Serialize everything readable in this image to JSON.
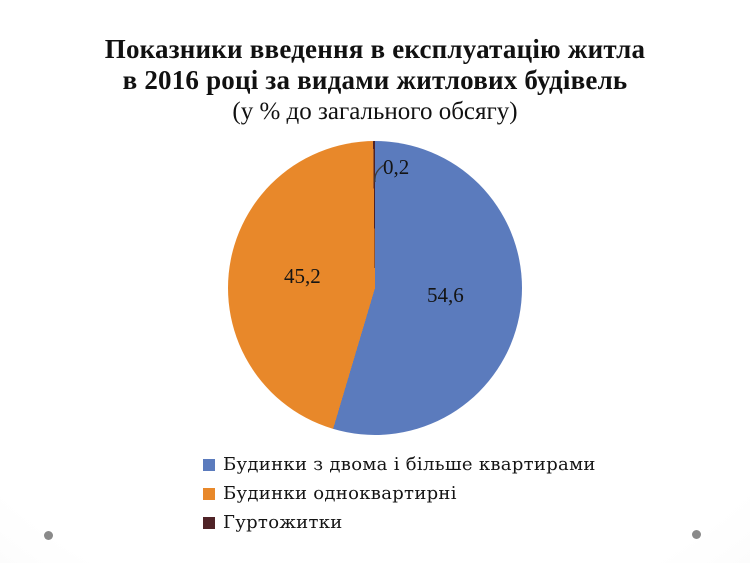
{
  "slide": {
    "title_line1": "Показники введення в експлуатацію житла",
    "title_line2": "в 2016 році за видами житлових будівель",
    "title_line3": "(у % до загального обсягу)"
  },
  "colors": {
    "series_blue": "#5B7BBD",
    "series_orange": "#E8882A",
    "series_maroon": "#4F2327",
    "text": "#111111",
    "decoration_dot": "#8A8A8A"
  },
  "chart_data": {
    "type": "pie",
    "title": "Показники введення в експлуатацію житла в 2016 році за видами житлових будівель (у % до загального обсягу)",
    "unit": "%",
    "start_angle_deg": 0,
    "direction": "clockwise",
    "legend_position": "bottom-left",
    "slices": [
      {
        "label": "Будинки з двома і більше квартирами",
        "value": 54.6,
        "display_value": "54,6",
        "color": "#5B7BBD"
      },
      {
        "label": "Будинки одноквартирні",
        "value": 45.2,
        "display_value": "45,2",
        "color": "#E8882A"
      },
      {
        "label": "Гуртожитки",
        "value": 0.2,
        "display_value": "0,2",
        "color": "#4F2327"
      }
    ]
  }
}
